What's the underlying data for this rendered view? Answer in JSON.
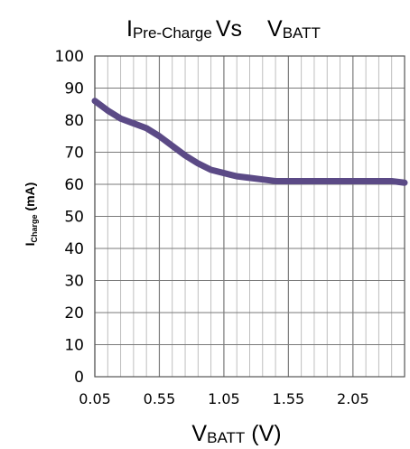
{
  "chart_data": {
    "type": "line",
    "title": {
      "main_prefix": "I",
      "main_sub": "Pre-Charge",
      "vs": "Vs",
      "second_prefix": "V",
      "second_sub": "BATT"
    },
    "xlabel": {
      "prefix": "V",
      "sub": "BATT",
      "suffix": " (V)"
    },
    "ylabel": {
      "prefix": "I",
      "sub": "Charge",
      "suffix": " (mA)"
    },
    "xlim": [
      0.05,
      2.45
    ],
    "ylim": [
      0,
      100
    ],
    "x_ticks": [
      0.05,
      0.55,
      1.05,
      1.55,
      2.05
    ],
    "x_tick_labels": [
      "0.05",
      "0.55",
      "1.05",
      "1.55",
      "2.05"
    ],
    "y_ticks": [
      0,
      10,
      20,
      30,
      40,
      50,
      60,
      70,
      80,
      90,
      100
    ],
    "y_tick_labels": [
      "0",
      "10",
      "20",
      "30",
      "40",
      "50",
      "60",
      "70",
      "80",
      "90",
      "100"
    ],
    "x_minor_step": 0.1,
    "grid": true,
    "series": [
      {
        "color": "#5b4a86",
        "x": [
          0.05,
          0.15,
          0.25,
          0.35,
          0.45,
          0.55,
          0.65,
          0.75,
          0.85,
          0.95,
          1.05,
          1.15,
          1.25,
          1.35,
          1.45,
          1.55,
          1.75,
          2.05,
          2.25,
          2.35,
          2.45
        ],
        "y": [
          86,
          83,
          80.5,
          79,
          77.5,
          75,
          72,
          69,
          66.5,
          64.5,
          63.5,
          62.5,
          62,
          61.5,
          61,
          61,
          61,
          61,
          61,
          61,
          60.5
        ]
      }
    ]
  }
}
